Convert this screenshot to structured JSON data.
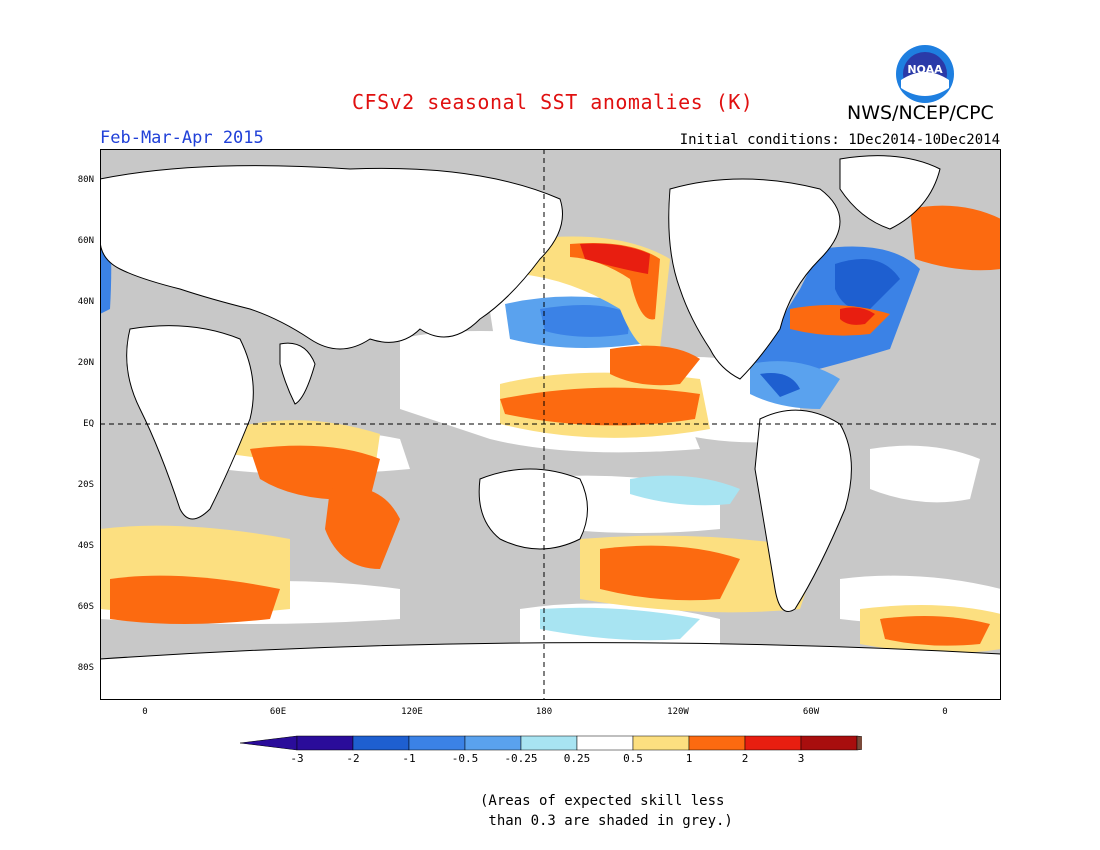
{
  "title": "CFSv2 seasonal SST anomalies (K)",
  "agency": "NWS/NCEP/CPC",
  "logo_text": "NOAA",
  "season": "Feb-Mar-Apr 2015",
  "initial_conditions": "Initial conditions: 1Dec2014-10Dec2014",
  "lat_labels": [
    "80N",
    "60N",
    "40N",
    "20N",
    "EQ",
    "20S",
    "40S",
    "60S",
    "80S"
  ],
  "lon_labels": [
    "0",
    "60E",
    "120E",
    "180",
    "120W",
    "60W",
    "0"
  ],
  "colorbar": {
    "labels": [
      "-3",
      "-2",
      "-1",
      "-0.5",
      "-0.25",
      "0.25",
      "0.5",
      "1",
      "2",
      "3"
    ],
    "colors": [
      "#2a0c9a",
      "#1e5fd0",
      "#3b82e6",
      "#5aa2ee",
      "#a8e4f2",
      "#ffffff",
      "#fcdf80",
      "#fc6a10",
      "#e81e10",
      "#a80e0e"
    ],
    "low_extend_color": "#2a0c9a",
    "high_extend_color": "#7a4a3a"
  },
  "map_colors": {
    "grey": "#c8c8c8",
    "land": "#ffffff",
    "ocean_white": "#ffffff"
  },
  "note": "(Areas of expected skill less\n than 0.3 are shaded in grey.)"
}
